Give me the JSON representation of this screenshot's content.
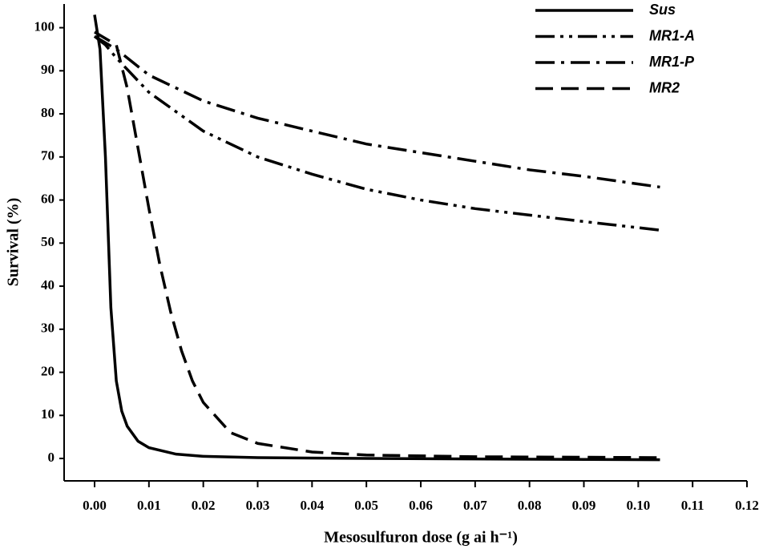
{
  "chart_data": {
    "type": "line",
    "x_label": "Mesosulfuron dose (g ai h⁻¹)",
    "y_label": "Survival (%)",
    "xlim": [
      -0.0056,
      0.12
    ],
    "ylim": [
      -5.2,
      105.5
    ],
    "xticks": [
      {
        "value": 0,
        "label": "0.00"
      },
      {
        "value": 0.01,
        "label": "0.01"
      },
      {
        "value": 0.02,
        "label": "0.02"
      },
      {
        "value": 0.03,
        "label": "0.03"
      },
      {
        "value": 0.04,
        "label": "0.04"
      },
      {
        "value": 0.05,
        "label": "0.05"
      },
      {
        "value": 0.06,
        "label": "0.06"
      },
      {
        "value": 0.07,
        "label": "0.07"
      },
      {
        "value": 0.08,
        "label": "0.08"
      },
      {
        "value": 0.09,
        "label": "0.09"
      },
      {
        "value": 0.1,
        "label": "0.10"
      },
      {
        "value": 0.11,
        "label": "0.11"
      },
      {
        "value": 0.12,
        "label": "0.12"
      }
    ],
    "yticks": [
      0,
      10,
      20,
      30,
      40,
      50,
      60,
      70,
      80,
      90,
      100
    ],
    "legend": "top-right",
    "series": [
      {
        "name": "Sus",
        "color": "#000000",
        "dash": "solid",
        "x": [
          0,
          0.001,
          0.002,
          0.003,
          0.004,
          0.005,
          0.006,
          0.008,
          0.01,
          0.015,
          0.02,
          0.03,
          0.05,
          0.104
        ],
        "values": [
          103,
          95,
          70,
          35,
          18,
          11,
          7.5,
          4,
          2.5,
          1,
          0.5,
          0.2,
          0,
          -0.3
        ]
      },
      {
        "name": "MR1-A",
        "color": "#000000",
        "dash": "dash-dot-dot",
        "x": [
          0,
          0.002,
          0.004,
          0.01,
          0.02,
          0.03,
          0.04,
          0.05,
          0.06,
          0.07,
          0.08,
          0.09,
          0.104
        ],
        "values": [
          98,
          96,
          93,
          85,
          76,
          70,
          66,
          62.5,
          60,
          58,
          56.5,
          55,
          53
        ]
      },
      {
        "name": "MR1-P",
        "color": "#000000",
        "dash": "dash-dot",
        "x": [
          0,
          0.004,
          0.01,
          0.02,
          0.03,
          0.04,
          0.05,
          0.06,
          0.07,
          0.08,
          0.09,
          0.104
        ],
        "values": [
          98,
          95,
          89,
          83,
          79,
          76,
          73,
          71,
          69,
          67,
          65.5,
          63
        ]
      },
      {
        "name": "MR2",
        "color": "#000000",
        "dash": "dashed",
        "x": [
          0,
          0.004,
          0.006,
          0.008,
          0.01,
          0.012,
          0.014,
          0.016,
          0.018,
          0.02,
          0.025,
          0.03,
          0.04,
          0.05,
          0.07,
          0.104
        ],
        "values": [
          99,
          96,
          86,
          72,
          58,
          45,
          34,
          25,
          18,
          13,
          6,
          3.5,
          1.5,
          0.8,
          0.4,
          0.2
        ]
      }
    ]
  }
}
